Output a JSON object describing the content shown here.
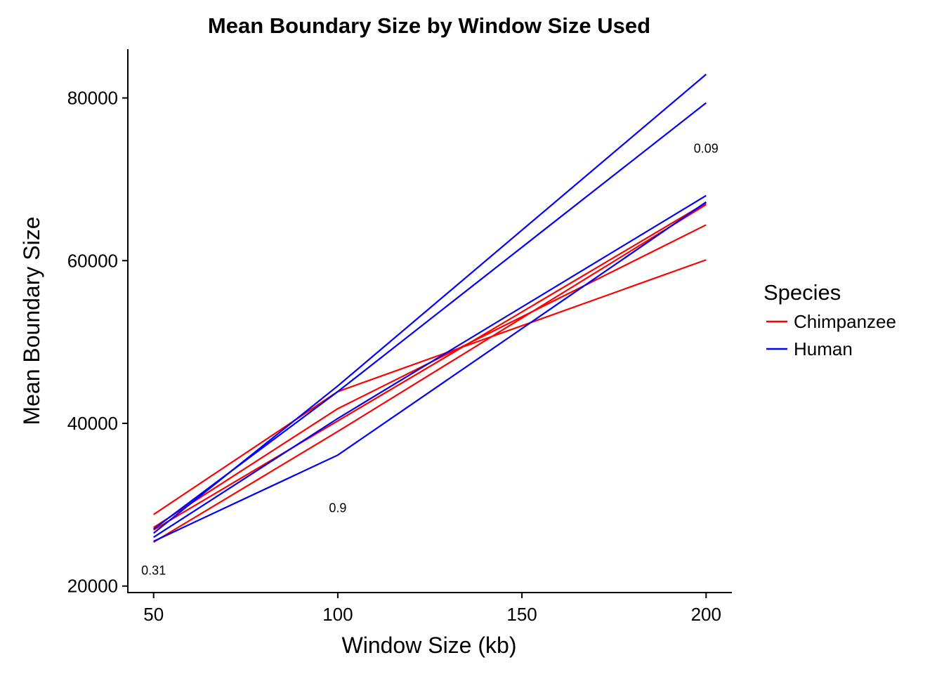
{
  "chart_data": {
    "type": "line",
    "title": "Mean Boundary Size by Window Size Used",
    "xlabel": "Window Size (kb)",
    "ylabel": "Mean Boundary Size",
    "xlim": [
      43,
      207
    ],
    "ylim": [
      19200,
      86000
    ],
    "xticks": [
      50,
      100,
      150,
      200
    ],
    "yticks": [
      20000,
      40000,
      60000,
      80000
    ],
    "grid": false,
    "legend": {
      "title": "Species",
      "placement": "right",
      "entries": [
        {
          "name": "Chimpanzee",
          "color": "#ff0000"
        },
        {
          "name": "Human",
          "color": "#0000ff"
        }
      ]
    },
    "x": [
      50,
      100,
      200
    ],
    "series": [
      {
        "species": "Chimpanzee",
        "color": "#ff0000",
        "values": [
          28800,
          43900,
          60100
        ]
      },
      {
        "species": "Chimpanzee",
        "color": "#ff0000",
        "values": [
          27200,
          41800,
          64400
        ]
      },
      {
        "species": "Chimpanzee",
        "color": "#ff0000",
        "values": [
          26900,
          40300,
          67100
        ]
      },
      {
        "species": "Chimpanzee",
        "color": "#ff0000",
        "values": [
          25400,
          39000,
          66900
        ]
      },
      {
        "species": "Human",
        "color": "#0000ff",
        "values": [
          26500,
          44600,
          82900
        ]
      },
      {
        "species": "Human",
        "color": "#0000ff",
        "values": [
          27000,
          43900,
          79400
        ]
      },
      {
        "species": "Human",
        "color": "#0000ff",
        "values": [
          26000,
          40600,
          68000
        ]
      },
      {
        "species": "Human",
        "color": "#0000ff",
        "values": [
          25500,
          36100,
          67200
        ]
      }
    ],
    "annotations": [
      {
        "text": "0.31",
        "x": 50,
        "y": 21900
      },
      {
        "text": "0.9",
        "x": 100,
        "y": 29600
      },
      {
        "text": "0.09",
        "x": 200,
        "y": 73800
      }
    ]
  }
}
